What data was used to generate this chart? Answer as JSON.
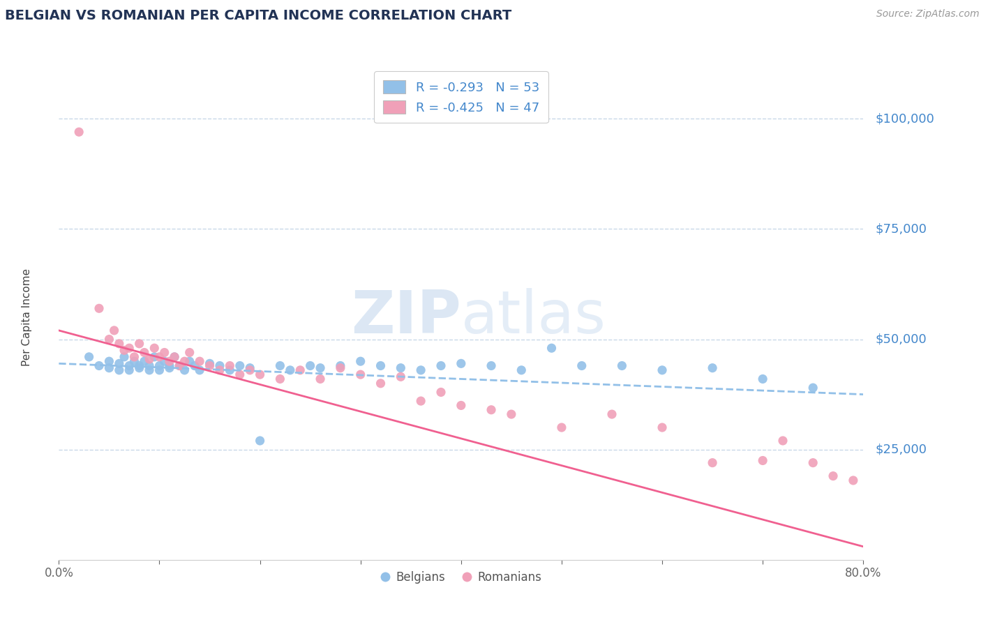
{
  "title": "BELGIAN VS ROMANIAN PER CAPITA INCOME CORRELATION CHART",
  "source_text": "Source: ZipAtlas.com",
  "ylabel": "Per Capita Income",
  "watermark_zip": "ZIP",
  "watermark_atlas": "atlas",
  "xlim": [
    0.0,
    0.8
  ],
  "ylim": [
    0,
    110000
  ],
  "yticks": [
    0,
    25000,
    50000,
    75000,
    100000
  ],
  "ytick_labels": [
    "",
    "$25,000",
    "$50,000",
    "$75,000",
    "$100,000"
  ],
  "xticks": [
    0.0,
    0.1,
    0.2,
    0.3,
    0.4,
    0.5,
    0.6,
    0.7,
    0.8
  ],
  "xtick_labels": [
    "0.0%",
    "",
    "",
    "",
    "",
    "",
    "",
    "",
    "80.0%"
  ],
  "belgian_color": "#92c0e8",
  "romanian_color": "#f0a0b8",
  "belgian_line_color": "#92c0e8",
  "romanian_line_color": "#f06090",
  "axis_label_color": "#4488cc",
  "title_color": "#223355",
  "background_color": "#ffffff",
  "grid_color": "#c8d8e8",
  "legend_R1": "R = -0.293",
  "legend_N1": "N = 53",
  "legend_R2": "R = -0.425",
  "legend_N2": "N = 47",
  "legend_label1": "Belgians",
  "legend_label2": "Romanians",
  "belgian_trend_x": [
    0.0,
    0.8
  ],
  "belgian_trend_y": [
    44500,
    37500
  ],
  "romanian_trend_x": [
    0.0,
    0.8
  ],
  "romanian_trend_y": [
    52000,
    3000
  ],
  "belgians_x": [
    0.03,
    0.04,
    0.05,
    0.05,
    0.06,
    0.06,
    0.065,
    0.07,
    0.07,
    0.075,
    0.08,
    0.08,
    0.085,
    0.09,
    0.09,
    0.095,
    0.1,
    0.1,
    0.105,
    0.11,
    0.11,
    0.115,
    0.12,
    0.125,
    0.13,
    0.135,
    0.14,
    0.15,
    0.16,
    0.17,
    0.18,
    0.19,
    0.2,
    0.22,
    0.23,
    0.25,
    0.26,
    0.28,
    0.3,
    0.32,
    0.34,
    0.36,
    0.38,
    0.4,
    0.43,
    0.46,
    0.49,
    0.52,
    0.56,
    0.6,
    0.65,
    0.7,
    0.75
  ],
  "belgians_y": [
    46000,
    44000,
    45000,
    43500,
    44500,
    43000,
    46000,
    44000,
    43000,
    45000,
    44000,
    43500,
    45000,
    44000,
    43000,
    46000,
    44000,
    43000,
    45000,
    44000,
    43500,
    46000,
    44000,
    43000,
    45000,
    44000,
    43000,
    44500,
    44000,
    43000,
    44000,
    43500,
    27000,
    44000,
    43000,
    44000,
    43500,
    44000,
    45000,
    44000,
    43500,
    43000,
    44000,
    44500,
    44000,
    43000,
    48000,
    44000,
    44000,
    43000,
    43500,
    41000,
    39000
  ],
  "romanians_x": [
    0.02,
    0.04,
    0.05,
    0.055,
    0.06,
    0.065,
    0.07,
    0.075,
    0.08,
    0.085,
    0.09,
    0.095,
    0.1,
    0.105,
    0.11,
    0.115,
    0.12,
    0.125,
    0.13,
    0.14,
    0.15,
    0.16,
    0.17,
    0.18,
    0.19,
    0.2,
    0.22,
    0.24,
    0.26,
    0.28,
    0.3,
    0.32,
    0.34,
    0.36,
    0.38,
    0.4,
    0.43,
    0.45,
    0.5,
    0.55,
    0.6,
    0.65,
    0.7,
    0.72,
    0.75,
    0.77,
    0.79
  ],
  "romanians_y": [
    97000,
    57000,
    50000,
    52000,
    49000,
    47500,
    48000,
    46000,
    49000,
    47000,
    45500,
    48000,
    46000,
    47000,
    45000,
    46000,
    44000,
    45000,
    47000,
    45000,
    44000,
    43000,
    44000,
    42000,
    43000,
    42000,
    41000,
    43000,
    41000,
    43500,
    42000,
    40000,
    41500,
    36000,
    38000,
    35000,
    34000,
    33000,
    30000,
    33000,
    30000,
    22000,
    22500,
    27000,
    22000,
    19000,
    18000
  ]
}
